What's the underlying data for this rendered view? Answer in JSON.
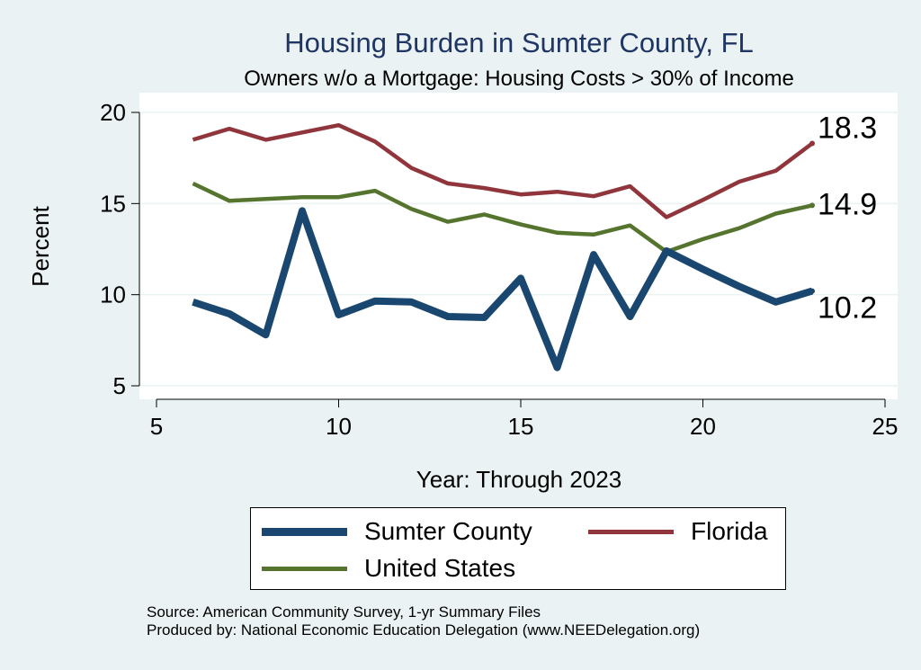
{
  "chart_data": {
    "type": "line",
    "title": "Housing Burden in Sumter County, FL",
    "subtitle": "Owners w/o a Mortgage: Housing Costs > 30% of Income",
    "xlabel": "Year: Through 2023",
    "ylabel": "Percent",
    "xlim": [
      5,
      25
    ],
    "ylim": [
      5,
      20
    ],
    "x_ticks": [
      5,
      10,
      15,
      20,
      25
    ],
    "y_ticks": [
      5,
      10,
      15,
      20
    ],
    "grid": true,
    "series": [
      {
        "name": "Sumter County",
        "color": "#1a476f",
        "x": [
          6,
          7,
          8,
          9,
          10,
          11,
          12,
          13,
          14,
          15,
          16,
          17,
          18,
          19,
          20,
          21,
          22,
          23
        ],
        "values": [
          9.6,
          8.95,
          7.8,
          14.6,
          8.9,
          9.65,
          9.6,
          8.8,
          8.75,
          10.9,
          6.0,
          12.2,
          8.8,
          12.4,
          11.4,
          10.45,
          9.6,
          10.2
        ],
        "end_label": "10.2"
      },
      {
        "name": "Florida",
        "color": "#90353b",
        "x": [
          6,
          7,
          8,
          9,
          10,
          11,
          12,
          13,
          14,
          15,
          16,
          17,
          18,
          19,
          20,
          21,
          22,
          23
        ],
        "values": [
          18.5,
          19.1,
          18.5,
          18.9,
          19.3,
          18.4,
          16.95,
          16.1,
          15.85,
          15.5,
          15.65,
          15.4,
          15.95,
          14.25,
          15.2,
          16.2,
          16.8,
          18.3
        ],
        "end_label": "18.3"
      },
      {
        "name": "United States",
        "color": "#55752f",
        "x": [
          6,
          7,
          8,
          9,
          10,
          11,
          12,
          13,
          14,
          15,
          16,
          17,
          18,
          19,
          20,
          21,
          22,
          23
        ],
        "values": [
          16.1,
          15.15,
          15.25,
          15.35,
          15.35,
          15.7,
          14.7,
          14.0,
          14.4,
          13.85,
          13.4,
          13.3,
          13.8,
          12.35,
          13.05,
          13.65,
          14.45,
          14.9
        ],
        "end_label": "14.9"
      }
    ],
    "legend": [
      "Sumter County",
      "Florida",
      "United States"
    ],
    "legend_position": "bottom"
  },
  "source_line": "Source: American Community Survey, 1-yr Summary Files",
  "produced_line": "Produced by: National Economic Education Delegation (www.NEEDelegation.org)"
}
